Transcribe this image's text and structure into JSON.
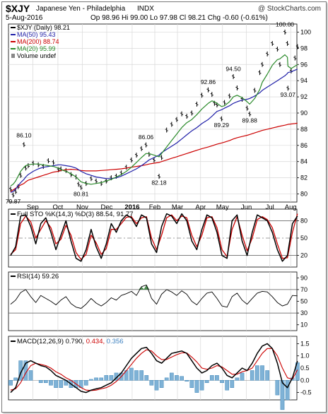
{
  "header": {
    "symbol": "$XJY",
    "name": "Japanese Yen - Philadelphia",
    "exchange": "INDX",
    "watermark": "@ StockCharts.com",
    "date": "5-Aug-2016",
    "op_label": "Op",
    "op": "98.96",
    "hi_label": "Hi",
    "hi": "99.00",
    "lo_label": "Lo",
    "lo": "97.98",
    "cl_label": "Cl",
    "cl": "98.21",
    "chg_label": "Chg",
    "chg": "-0.60 (-0.61%)"
  },
  "colors": {
    "price": "#000000",
    "ma50": "#1f1fa8",
    "ma200": "#cc0000",
    "ma20": "#2a8a2a",
    "sto_k": "#000000",
    "sto_d": "#cc0000",
    "rsi": "#000000",
    "rsi_fill": "#2e7d32",
    "macd": "#000000",
    "signal": "#cc0000",
    "hist": "#3f87b9",
    "hist_fill": "#7fb2d6",
    "grid": "#d8d8d8",
    "dash": "#808080"
  },
  "chart_data": [
    {
      "type": "line",
      "panel": "price",
      "ylim": [
        79,
        101
      ],
      "y_ticks": [
        "80",
        "82",
        "84",
        "86",
        "88",
        "90",
        "92",
        "94",
        "96",
        "98",
        "100"
      ],
      "x_months": [
        "Sep",
        "Oct",
        "Nov",
        "Dec",
        "2016",
        "Feb",
        "Mar",
        "Apr",
        "May",
        "Jun",
        "Jul",
        "Aug"
      ],
      "x_month_pos": [
        0.088,
        0.188,
        0.285,
        0.382,
        0.483,
        0.573,
        0.663,
        0.755,
        0.842,
        0.937,
        1.03,
        1.113
      ],
      "legend": [
        {
          "key": "price",
          "text": "$XJY (Daily) 98.21"
        },
        {
          "key": "ma50",
          "text": "MA(50) 95.43"
        },
        {
          "key": "ma200",
          "text": "MA(200) 88.74"
        },
        {
          "key": "ma20",
          "text": "MA(20) 95.99"
        },
        {
          "key": "vol",
          "text": "Volume undef"
        }
      ],
      "annotations": [
        {
          "text": "86.10",
          "x": 0.053,
          "y": 86.1,
          "dy": -10
        },
        {
          "text": "79.87",
          "x": 0.01,
          "y": 79.87,
          "dy": 12
        },
        {
          "text": "80.81",
          "x": 0.28,
          "y": 80.81,
          "dy": 12
        },
        {
          "text": "86.06",
          "x": 0.538,
          "y": 86.06,
          "dy": -8
        },
        {
          "text": "82.18",
          "x": 0.59,
          "y": 82.18,
          "dy": 12
        },
        {
          "text": "92.86",
          "x": 0.785,
          "y": 92.86,
          "dy": -8
        },
        {
          "text": "94.50",
          "x": 0.885,
          "y": 94.5,
          "dy": -8
        },
        {
          "text": "89.29",
          "x": 0.838,
          "y": 89.29,
          "dy": 12
        },
        {
          "text": "89.88",
          "x": 0.95,
          "y": 89.88,
          "dy": 12
        },
        {
          "text": "100.00",
          "x": 1.09,
          "y": 100.0,
          "dy": -8
        },
        {
          "text": "93.07",
          "x": 1.102,
          "y": 93.07,
          "dy": 12
        }
      ],
      "x": [
        0,
        0.01,
        0.02,
        0.03,
        0.04,
        0.053,
        0.06,
        0.07,
        0.09,
        0.11,
        0.13,
        0.15,
        0.17,
        0.19,
        0.2,
        0.22,
        0.24,
        0.26,
        0.27,
        0.28,
        0.3,
        0.32,
        0.34,
        0.36,
        0.38,
        0.4,
        0.42,
        0.44,
        0.46,
        0.48,
        0.5,
        0.52,
        0.538,
        0.55,
        0.57,
        0.59,
        0.6,
        0.62,
        0.64,
        0.66,
        0.68,
        0.7,
        0.72,
        0.74,
        0.76,
        0.785,
        0.8,
        0.81,
        0.82,
        0.838,
        0.85,
        0.87,
        0.885,
        0.9,
        0.92,
        0.94,
        0.95,
        0.97,
        0.99,
        1.0,
        1.02,
        1.04,
        1.06,
        1.07,
        1.09,
        1.1,
        1.102,
        1.115,
        1.13,
        1.14
      ],
      "series": [
        {
          "key": "price",
          "kind": "bars",
          "values": [
            80.6,
            79.87,
            80.3,
            80.9,
            82.3,
            86.1,
            83.2,
            83.5,
            83.8,
            83.6,
            83.4,
            84.1,
            83.9,
            83.0,
            83.1,
            82.9,
            82.4,
            82.1,
            81.2,
            80.81,
            81.3,
            81.9,
            81.6,
            81.3,
            81.6,
            82.0,
            82.2,
            82.6,
            83.3,
            84.2,
            84.8,
            85.6,
            86.06,
            84.9,
            84.2,
            82.18,
            84.5,
            87.9,
            88.6,
            89.2,
            89.9,
            89.6,
            90.0,
            91.1,
            92.2,
            92.86,
            92.3,
            91.2,
            91.0,
            89.29,
            91.3,
            92.1,
            94.5,
            93.1,
            91.7,
            90.6,
            89.88,
            92.8,
            95.0,
            96.0,
            97.3,
            98.6,
            97.9,
            96.0,
            100.0,
            98.6,
            93.07,
            95.2,
            96.8,
            98.2
          ]
        },
        {
          "key": "ma200",
          "kind": "line",
          "values": [
            80.3,
            80.5,
            80.7,
            80.9,
            81.1,
            81.3,
            81.5,
            81.7,
            81.9,
            82.1,
            82.3,
            82.5,
            82.7,
            82.8,
            82.9,
            83.0,
            83.05,
            83.0,
            82.95,
            82.9,
            82.85,
            82.85,
            82.85,
            82.9,
            82.95,
            83.0,
            83.05,
            83.1,
            83.2,
            83.3,
            83.4,
            83.5,
            83.6,
            83.7,
            83.8,
            83.9,
            84.0,
            84.2,
            84.4,
            84.6,
            84.8,
            85.0,
            85.2,
            85.4,
            85.6,
            85.8,
            85.95,
            86.05,
            86.15,
            86.3,
            86.4,
            86.6,
            86.8,
            86.95,
            87.1,
            87.25,
            87.35,
            87.55,
            87.75,
            87.85,
            88.0,
            88.15,
            88.3,
            88.38,
            88.5,
            88.58,
            88.6,
            88.65,
            88.7,
            88.74
          ]
        },
        {
          "key": "ma50",
          "kind": "line",
          "values": [
            80.2,
            80.3,
            80.6,
            81.0,
            81.4,
            81.8,
            82.1,
            82.4,
            82.8,
            83.1,
            83.3,
            83.4,
            83.5,
            83.6,
            83.6,
            83.5,
            83.4,
            83.2,
            83.0,
            82.8,
            82.5,
            82.3,
            82.1,
            82.0,
            81.9,
            81.9,
            82.0,
            82.2,
            82.5,
            82.8,
            83.1,
            83.5,
            83.9,
            84.2,
            84.5,
            84.8,
            85.1,
            85.5,
            85.9,
            86.3,
            86.8,
            87.3,
            87.8,
            88.2,
            88.7,
            89.2,
            89.6,
            89.9,
            90.2,
            90.4,
            90.6,
            90.9,
            91.2,
            91.4,
            91.6,
            91.7,
            91.8,
            92.1,
            92.5,
            92.8,
            93.2,
            93.6,
            94.0,
            94.2,
            94.6,
            94.9,
            95.0,
            95.1,
            95.3,
            95.43
          ]
        },
        {
          "key": "ma20",
          "kind": "line",
          "values": [
            81.0,
            81.2,
            81.6,
            82.2,
            82.8,
            83.3,
            83.5,
            83.6,
            83.7,
            83.7,
            83.6,
            83.5,
            83.4,
            83.2,
            83.0,
            82.8,
            82.5,
            82.1,
            81.8,
            81.5,
            81.3,
            81.2,
            81.3,
            81.4,
            81.6,
            81.8,
            82.1,
            82.4,
            82.8,
            83.3,
            83.9,
            84.5,
            85.0,
            85.0,
            84.8,
            84.6,
            85.0,
            85.8,
            86.6,
            87.4,
            88.2,
            88.8,
            89.2,
            89.8,
            90.5,
            91.2,
            91.5,
            91.4,
            91.2,
            90.8,
            90.9,
            91.4,
            92.0,
            92.2,
            91.9,
            91.4,
            91.1,
            91.8,
            92.9,
            93.8,
            94.8,
            95.9,
            96.6,
            96.7,
            97.2,
            96.9,
            95.8,
            95.5,
            95.8,
            95.99
          ]
        }
      ]
    },
    {
      "type": "line",
      "panel": "sto",
      "title": "Full STO %K(14,3) %D(3) 88.54, 91.77",
      "ylim": [
        0,
        100
      ],
      "y_ticks": [
        "20",
        "50",
        "80"
      ],
      "dashed": [
        50
      ],
      "lines": [
        20,
        80
      ],
      "x": [
        0,
        0.02,
        0.04,
        0.06,
        0.08,
        0.1,
        0.12,
        0.14,
        0.16,
        0.18,
        0.2,
        0.22,
        0.24,
        0.26,
        0.28,
        0.3,
        0.32,
        0.34,
        0.36,
        0.38,
        0.4,
        0.42,
        0.44,
        0.46,
        0.48,
        0.5,
        0.52,
        0.54,
        0.56,
        0.58,
        0.6,
        0.62,
        0.64,
        0.66,
        0.68,
        0.7,
        0.72,
        0.74,
        0.76,
        0.78,
        0.8,
        0.82,
        0.84,
        0.86,
        0.88,
        0.9,
        0.92,
        0.94,
        0.96,
        0.98,
        1.0,
        1.02,
        1.04,
        1.06,
        1.08,
        1.1,
        1.12,
        1.14
      ],
      "series": [
        {
          "key": "sto_k",
          "values": [
            20,
            35,
            88,
            90,
            70,
            40,
            75,
            85,
            60,
            30,
            55,
            80,
            45,
            15,
            10,
            30,
            65,
            35,
            15,
            40,
            75,
            60,
            80,
            90,
            85,
            70,
            90,
            85,
            40,
            25,
            70,
            92,
            88,
            75,
            92,
            80,
            45,
            30,
            65,
            90,
            85,
            60,
            20,
            15,
            80,
            90,
            45,
            20,
            60,
            90,
            85,
            80,
            60,
            30,
            10,
            20,
            75,
            88
          ]
        },
        {
          "key": "sto_d",
          "values": [
            22,
            30,
            75,
            88,
            78,
            50,
            65,
            80,
            68,
            40,
            48,
            72,
            55,
            25,
            13,
            22,
            55,
            42,
            22,
            32,
            65,
            65,
            75,
            86,
            87,
            75,
            85,
            87,
            50,
            30,
            55,
            85,
            90,
            80,
            88,
            85,
            55,
            35,
            55,
            85,
            87,
            68,
            30,
            18,
            65,
            87,
            55,
            28,
            50,
            82,
            87,
            82,
            68,
            40,
            15,
            16,
            60,
            92
          ]
        }
      ]
    },
    {
      "type": "line",
      "panel": "rsi",
      "title": "RSI(14) 59.26",
      "ylim": [
        0,
        100
      ],
      "y_ticks": [
        "10",
        "30",
        "50",
        "70",
        "90"
      ],
      "lines": [
        30,
        70
      ],
      "x": [
        0,
        0.02,
        0.04,
        0.06,
        0.08,
        0.1,
        0.12,
        0.14,
        0.16,
        0.18,
        0.2,
        0.22,
        0.24,
        0.26,
        0.28,
        0.3,
        0.32,
        0.34,
        0.36,
        0.38,
        0.4,
        0.42,
        0.44,
        0.46,
        0.48,
        0.5,
        0.52,
        0.54,
        0.56,
        0.58,
        0.6,
        0.62,
        0.64,
        0.66,
        0.68,
        0.7,
        0.72,
        0.74,
        0.76,
        0.78,
        0.8,
        0.82,
        0.84,
        0.86,
        0.88,
        0.9,
        0.92,
        0.94,
        0.96,
        0.98,
        1.0,
        1.02,
        1.04,
        1.06,
        1.08,
        1.1,
        1.12,
        1.14
      ],
      "series": [
        {
          "key": "rsi",
          "values": [
            45,
            52,
            65,
            70,
            58,
            48,
            60,
            55,
            50,
            44,
            52,
            58,
            46,
            40,
            38,
            45,
            55,
            47,
            42,
            48,
            56,
            52,
            60,
            63,
            67,
            60,
            75,
            78,
            55,
            45,
            62,
            70,
            66,
            60,
            68,
            62,
            50,
            44,
            55,
            64,
            66,
            55,
            42,
            40,
            58,
            64,
            52,
            45,
            55,
            64,
            67,
            66,
            58,
            48,
            42,
            45,
            60,
            59.26
          ]
        }
      ]
    },
    {
      "type": "line",
      "panel": "macd",
      "title": "MACD(12,26,9) 0.790, 0.434, 0.356",
      "ylim": [
        -0.8,
        1.8
      ],
      "y_ticks": [
        "-0.5",
        "0.0",
        "0.5",
        "1.0",
        "1.5"
      ],
      "x": [
        0,
        0.02,
        0.04,
        0.06,
        0.08,
        0.1,
        0.12,
        0.14,
        0.16,
        0.18,
        0.2,
        0.22,
        0.24,
        0.26,
        0.28,
        0.3,
        0.32,
        0.34,
        0.36,
        0.38,
        0.4,
        0.42,
        0.44,
        0.46,
        0.48,
        0.5,
        0.52,
        0.54,
        0.56,
        0.58,
        0.6,
        0.62,
        0.64,
        0.66,
        0.68,
        0.7,
        0.72,
        0.74,
        0.76,
        0.78,
        0.8,
        0.82,
        0.84,
        0.86,
        0.88,
        0.9,
        0.92,
        0.94,
        0.96,
        0.98,
        1.0,
        1.02,
        1.04,
        1.06,
        1.08,
        1.1,
        1.12,
        1.14
      ],
      "series": [
        {
          "key": "macd",
          "values": [
            -0.5,
            -0.3,
            0.3,
            0.7,
            0.8,
            0.7,
            0.6,
            0.55,
            0.4,
            0.2,
            0.1,
            0.0,
            -0.15,
            -0.3,
            -0.45,
            -0.5,
            -0.4,
            -0.35,
            -0.3,
            -0.2,
            -0.1,
            0.1,
            0.3,
            0.6,
            0.9,
            1.1,
            1.3,
            1.35,
            1.1,
            0.8,
            0.7,
            0.9,
            1.1,
            1.15,
            1.2,
            1.1,
            0.8,
            0.5,
            0.3,
            0.4,
            0.6,
            0.7,
            0.5,
            0.2,
            0.1,
            0.3,
            0.5,
            0.4,
            0.7,
            1.1,
            1.4,
            1.5,
            1.3,
            0.7,
            -0.1,
            -0.3,
            0.1,
            0.79
          ]
        },
        {
          "key": "signal",
          "values": [
            -0.4,
            -0.35,
            -0.1,
            0.3,
            0.6,
            0.7,
            0.65,
            0.6,
            0.5,
            0.35,
            0.25,
            0.1,
            0.0,
            -0.15,
            -0.3,
            -0.4,
            -0.42,
            -0.4,
            -0.35,
            -0.3,
            -0.2,
            -0.05,
            0.15,
            0.4,
            0.65,
            0.9,
            1.1,
            1.25,
            1.2,
            1.0,
            0.85,
            0.85,
            0.95,
            1.05,
            1.12,
            1.12,
            0.95,
            0.75,
            0.5,
            0.45,
            0.5,
            0.6,
            0.55,
            0.4,
            0.25,
            0.25,
            0.35,
            0.4,
            0.5,
            0.8,
            1.1,
            1.3,
            1.3,
            1.0,
            0.5,
            0.1,
            0.05,
            0.43
          ]
        }
      ]
    }
  ]
}
